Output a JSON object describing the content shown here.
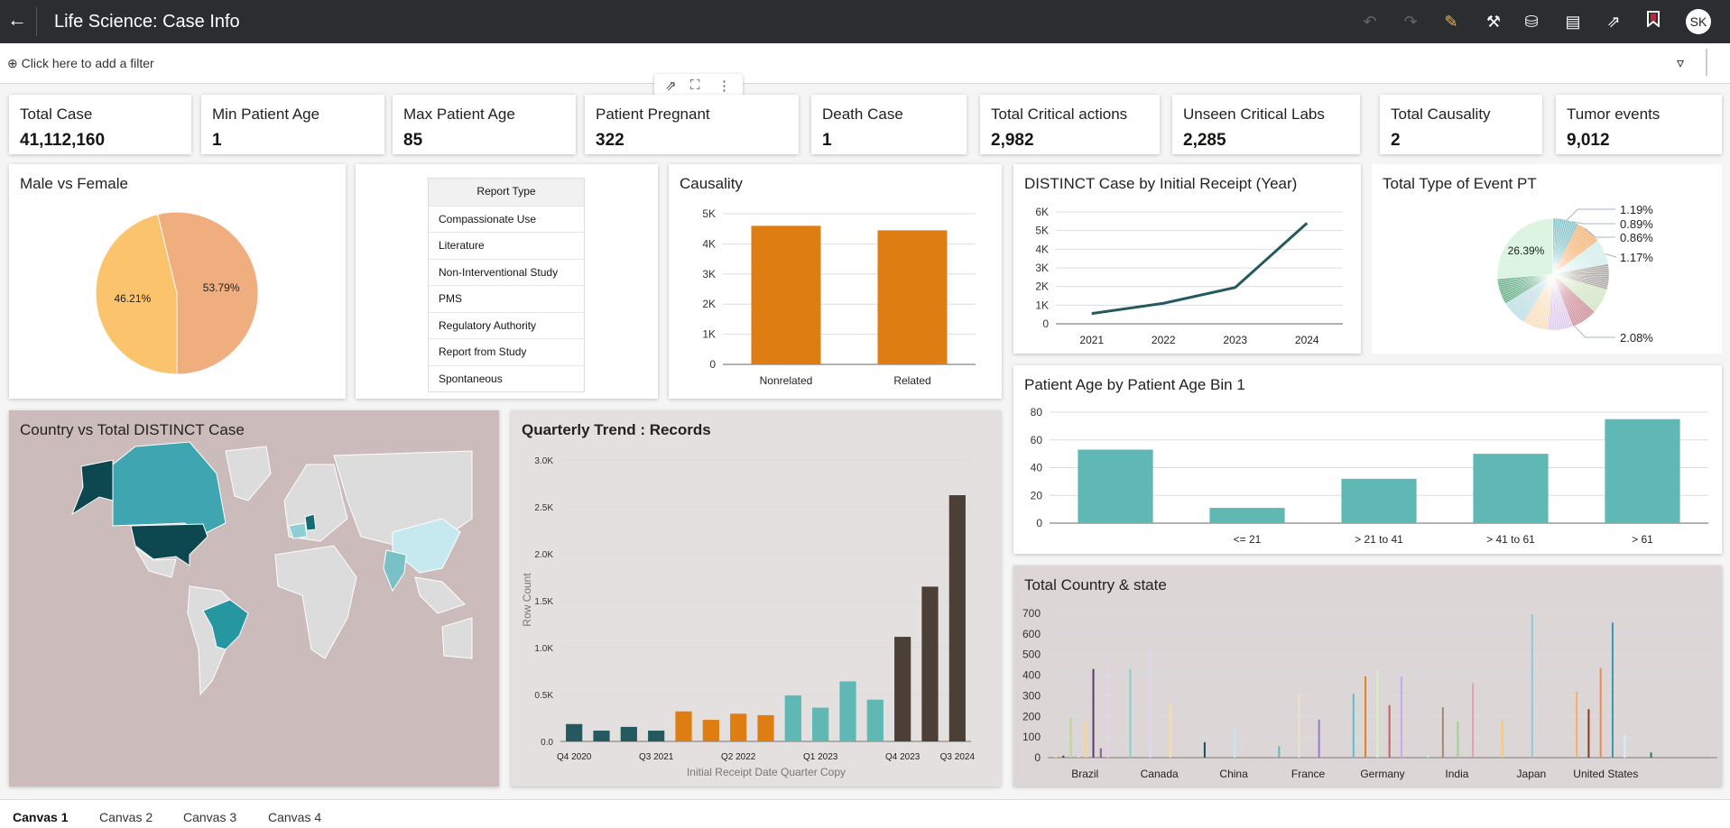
{
  "header": {
    "title": "Life Science: Case Info",
    "avatar": "SK",
    "icons": [
      "undo-icon",
      "redo-icon",
      "edit-icon",
      "tools-icon",
      "data-icon",
      "comment-icon",
      "export-icon",
      "bookmark-icon"
    ]
  },
  "filter": {
    "add_label": "Click here to add a filter"
  },
  "kpis": [
    {
      "label": "Total Case",
      "value": "41,112,160"
    },
    {
      "label": "Min Patient Age",
      "value": "1"
    },
    {
      "label": "Max Patient Age",
      "value": "85"
    },
    {
      "label": "Patient Pregnant",
      "value": "322"
    },
    {
      "label": "Death Case",
      "value": "1"
    },
    {
      "label": "Total Critical actions",
      "value": "2,982"
    },
    {
      "label": "Unseen Critical Labs",
      "value": "2,285"
    },
    {
      "label": "Total Causality",
      "value": "2"
    },
    {
      "label": "Tumor events",
      "value": "9,012"
    }
  ],
  "report_type": {
    "header": "Report Type",
    "items": [
      "Compassionate Use",
      "Literature",
      "Non-Interventional Study",
      "PMS",
      "Regulatory Authority",
      "Report from Study",
      "Spontaneous"
    ]
  },
  "map": {
    "title": "Country vs Total DISTINCT Case"
  },
  "tabs": [
    "Canvas 1",
    "Canvas 2",
    "Canvas 3",
    "Canvas 4"
  ],
  "chart_data": [
    {
      "id": "gender",
      "type": "pie",
      "title": "Male vs Female",
      "slices": [
        {
          "label": "46.21%",
          "value": 46.21,
          "color": "#fcc36d"
        },
        {
          "label": "53.79%",
          "value": 53.79,
          "color": "#f0ae7e"
        }
      ]
    },
    {
      "id": "causality",
      "type": "bar",
      "title": "Causality",
      "categories": [
        "Nonrelated",
        "Related"
      ],
      "values": [
        4600,
        4450
      ],
      "ylim": [
        0,
        5000
      ],
      "yticks": [
        "0",
        "1K",
        "2K",
        "3K",
        "4K",
        "5K"
      ],
      "color": "#de7e12"
    },
    {
      "id": "distinct",
      "type": "line",
      "title": "DISTINCT Case by Initial Receipt (Year)",
      "categories": [
        "2021",
        "2022",
        "2023",
        "2024"
      ],
      "values": [
        550,
        1100,
        1950,
        5400
      ],
      "ylim": [
        0,
        6000
      ],
      "yticks": [
        "0",
        "1K",
        "2K",
        "3K",
        "4K",
        "5K",
        "6K"
      ],
      "color": "#245a5f"
    },
    {
      "id": "eventpt",
      "type": "pie",
      "title": "Total Type of Event PT",
      "slices": [
        {
          "label": "26.39%",
          "value": 26.39,
          "color": "#dcf5e3"
        },
        {
          "label": "1.19%",
          "value": 1.19,
          "color": "#5fb8c4"
        },
        {
          "label": "0.89%",
          "value": 0.89,
          "color": "#9fd8de"
        },
        {
          "label": "0.86%",
          "value": 0.86,
          "color": "#f4a860"
        },
        {
          "label": "1.17%",
          "value": 1.17,
          "color": "#c8ece8"
        },
        {
          "label": "2.08%",
          "value": 2.08,
          "color": "#c47a86"
        }
      ]
    },
    {
      "id": "agebin",
      "type": "bar",
      "title": "Patient Age by Patient Age Bin 1",
      "categories": [
        "",
        "<= 21",
        "> 21 to 41",
        "> 41 to 61",
        "> 61"
      ],
      "values": [
        53,
        11,
        32,
        50,
        75
      ],
      "ylim": [
        0,
        80
      ],
      "yticks": [
        "0",
        "20",
        "40",
        "60",
        "80"
      ],
      "color": "#5fb8b4"
    },
    {
      "id": "quarterly",
      "type": "bar",
      "title": "Quarterly Trend : Records",
      "xlabel": "Initial Receipt Date Quarter Copy",
      "ylabel": "Row Count",
      "ylim": [
        0,
        3000
      ],
      "yticks": [
        "0.0",
        "0.5K",
        "1.0K",
        "1.5K",
        "2.0K",
        "2.5K",
        "3.0K"
      ],
      "xticklabels": {
        "0": "Q4 2020",
        "3": "Q3 2021",
        "6": "Q2 2022",
        "9": "Q1 2023",
        "12": "Q4 2023",
        "15": "Q3 2024"
      },
      "values": [
        185,
        115,
        155,
        115,
        320,
        230,
        295,
        280,
        490,
        360,
        640,
        445,
        1115,
        1650,
        2625
      ],
      "colors": [
        "#245a5f",
        "#245a5f",
        "#245a5f",
        "#245a5f",
        "#de7e12",
        "#de7e12",
        "#de7e12",
        "#de7e12",
        "#5fb8b4",
        "#5fb8b4",
        "#5fb8b4",
        "#5fb8b4",
        "#4c3f37",
        "#4c3f37",
        "#4c3f37"
      ]
    },
    {
      "id": "countrystate",
      "type": "bar",
      "title": "Total Country & state",
      "ylim": [
        0,
        700
      ],
      "yticks": [
        "0",
        "100",
        "200",
        "300",
        "400",
        "500",
        "600",
        "700"
      ],
      "categories": [
        "Brazil",
        "Canada",
        "China",
        "France",
        "Germany",
        "India",
        "Japan",
        "United States",
        ""
      ],
      "groups": [
        [
          [
            15,
            "#f5d9a0"
          ],
          [
            10,
            "#5a3d30"
          ],
          [
            195,
            "#b9d89a"
          ],
          [
            10,
            "#f0d0e0"
          ],
          [
            175,
            "#fcd28a"
          ],
          [
            430,
            "#5b3a6a"
          ],
          [
            45,
            "#8a5aa0"
          ],
          [
            485,
            "#e8d0f0"
          ]
        ],
        [
          [
            430,
            "#88cfcc"
          ],
          [
            525,
            "#e4d4f4"
          ],
          [
            260,
            "#fde0a0"
          ]
        ],
        [
          [
            75,
            "#1e4e55"
          ],
          [
            140,
            "#c0eef0"
          ]
        ],
        [
          [
            55,
            "#5fb8b4"
          ],
          [
            305,
            "#eee0d0"
          ],
          [
            185,
            "#9a7ad0"
          ]
        ],
        [
          [
            310,
            "#5bc0cc"
          ],
          [
            395,
            "#e08020"
          ],
          [
            425,
            "#d8f0c0"
          ],
          [
            255,
            "#c06060"
          ],
          [
            395,
            "#c8a8f0"
          ]
        ],
        [
          [
            10,
            "#c0eef0"
          ],
          [
            245,
            "#a08878"
          ],
          [
            175,
            "#a0d090"
          ],
          [
            360,
            "#e0a0b0"
          ]
        ],
        [
          [
            180,
            "#fcc870"
          ],
          [
            695,
            "#90c8d8"
          ]
        ],
        [
          [
            320,
            "#f8b060"
          ],
          [
            235,
            "#8a3a20"
          ],
          [
            435,
            "#f08850"
          ],
          [
            655,
            "#3a98b0"
          ],
          [
            115,
            "#d0f0f8"
          ]
        ],
        [
          [
            25,
            "#2a7a4a"
          ]
        ]
      ]
    }
  ]
}
